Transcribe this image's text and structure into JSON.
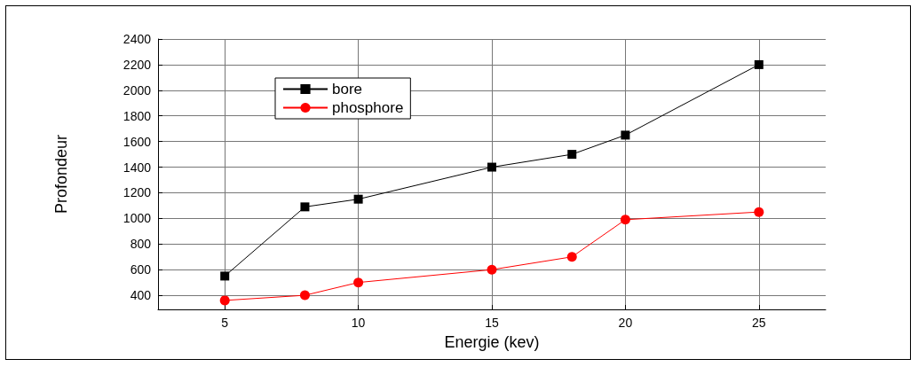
{
  "chart_data": {
    "type": "line",
    "xlabel": "Energie (kev)",
    "ylabel": "Profondeur",
    "x": [
      5,
      8,
      10,
      15,
      18,
      20,
      25
    ],
    "series": [
      {
        "name": "bore",
        "color": "#000000",
        "marker": "square",
        "values": [
          550,
          1090,
          1150,
          1400,
          1500,
          1650,
          2200
        ]
      },
      {
        "name": "phosphore",
        "color": "#ff0000",
        "marker": "circle",
        "values": [
          360,
          400,
          500,
          600,
          700,
          990,
          1050
        ]
      }
    ],
    "xlim": [
      2.5,
      27.5
    ],
    "xticks": [
      5,
      10,
      15,
      20,
      25
    ],
    "ylim": [
      290,
      2400
    ],
    "yticks": [
      400,
      600,
      800,
      1000,
      1200,
      1400,
      1600,
      1800,
      2000,
      2200,
      2400
    ],
    "grid": true,
    "legend": "top left",
    "line_style": "solid"
  }
}
